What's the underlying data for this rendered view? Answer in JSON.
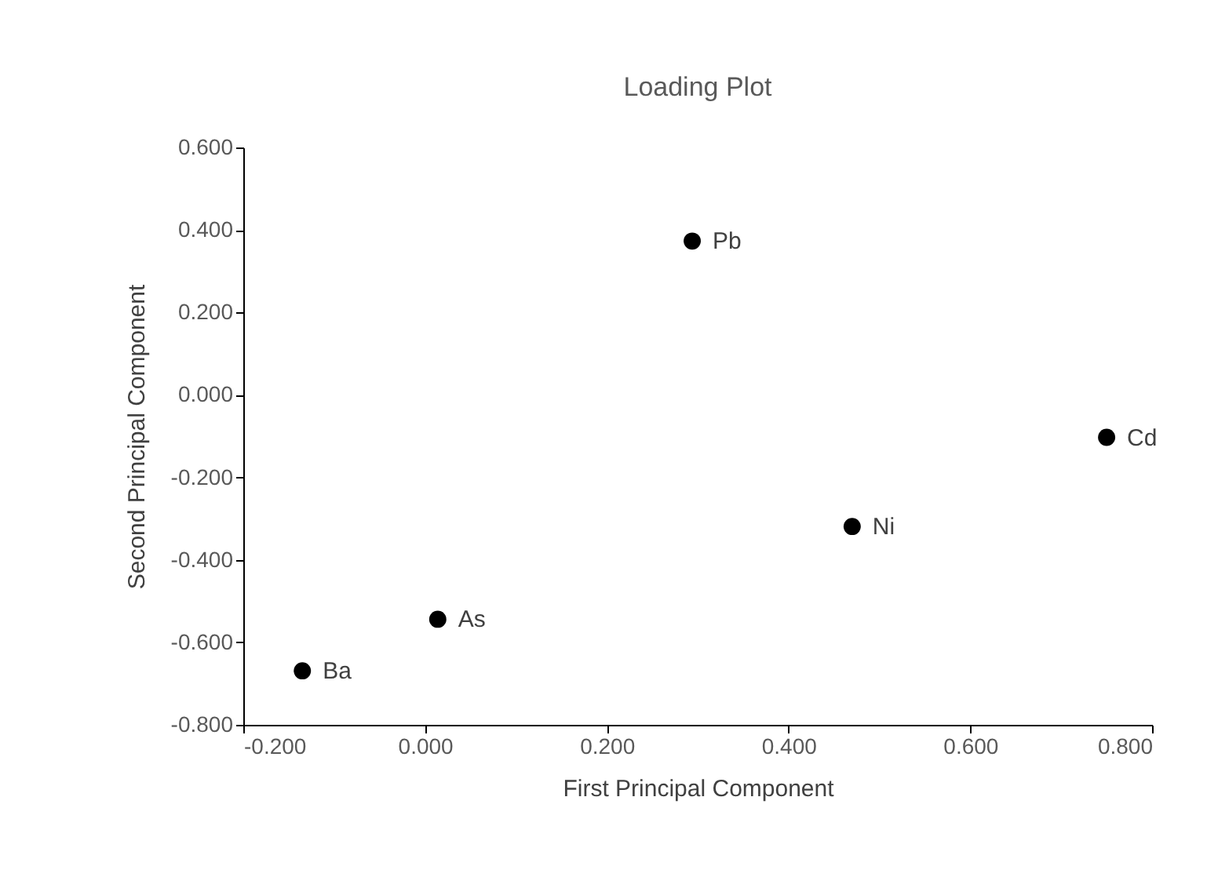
{
  "chart_data": {
    "type": "scatter",
    "title": "Loading Plot",
    "xlabel": "First Principal Component",
    "ylabel": "Second Principal Component",
    "x": [
      0.294,
      0.75,
      0.47,
      0.014,
      -0.135
    ],
    "values": [
      0.373,
      -0.103,
      -0.319,
      -0.544,
      -0.669
    ],
    "color": "#000000",
    "marker": "circle",
    "grid": false,
    "xlim": [
      -0.2,
      0.8
    ],
    "ylim": [
      -0.8,
      0.6
    ],
    "xticks": [
      {
        "value": -0.2,
        "label": "-0.200"
      },
      {
        "value": 0,
        "label": "0.000"
      },
      {
        "value": 0.2,
        "label": "0.200"
      },
      {
        "value": 0.4,
        "label": "0.400"
      },
      {
        "value": 0.6,
        "label": "0.600"
      },
      {
        "value": 0.8,
        "label": "0.800"
      }
    ],
    "yticks": [
      {
        "value": -0.8,
        "label": "-0.800"
      },
      {
        "value": -0.6,
        "label": "-0.600"
      },
      {
        "value": -0.4,
        "label": "-0.400"
      },
      {
        "value": -0.2,
        "label": "-0.200"
      },
      {
        "value": 0,
        "label": "0.000"
      },
      {
        "value": 0.2,
        "label": "0.200"
      },
      {
        "value": 0.4,
        "label": "0.400"
      },
      {
        "value": 0.6,
        "label": "0.600"
      }
    ],
    "annotations": [
      {
        "text": "Pb",
        "x": 0.294,
        "y": 0.373
      },
      {
        "text": "Cd",
        "x": 0.75,
        "y": -0.103
      },
      {
        "text": "Ni",
        "x": 0.47,
        "y": -0.319
      },
      {
        "text": "As",
        "x": 0.014,
        "y": -0.544
      },
      {
        "text": "Ba",
        "x": -0.135,
        "y": -0.669
      }
    ]
  }
}
